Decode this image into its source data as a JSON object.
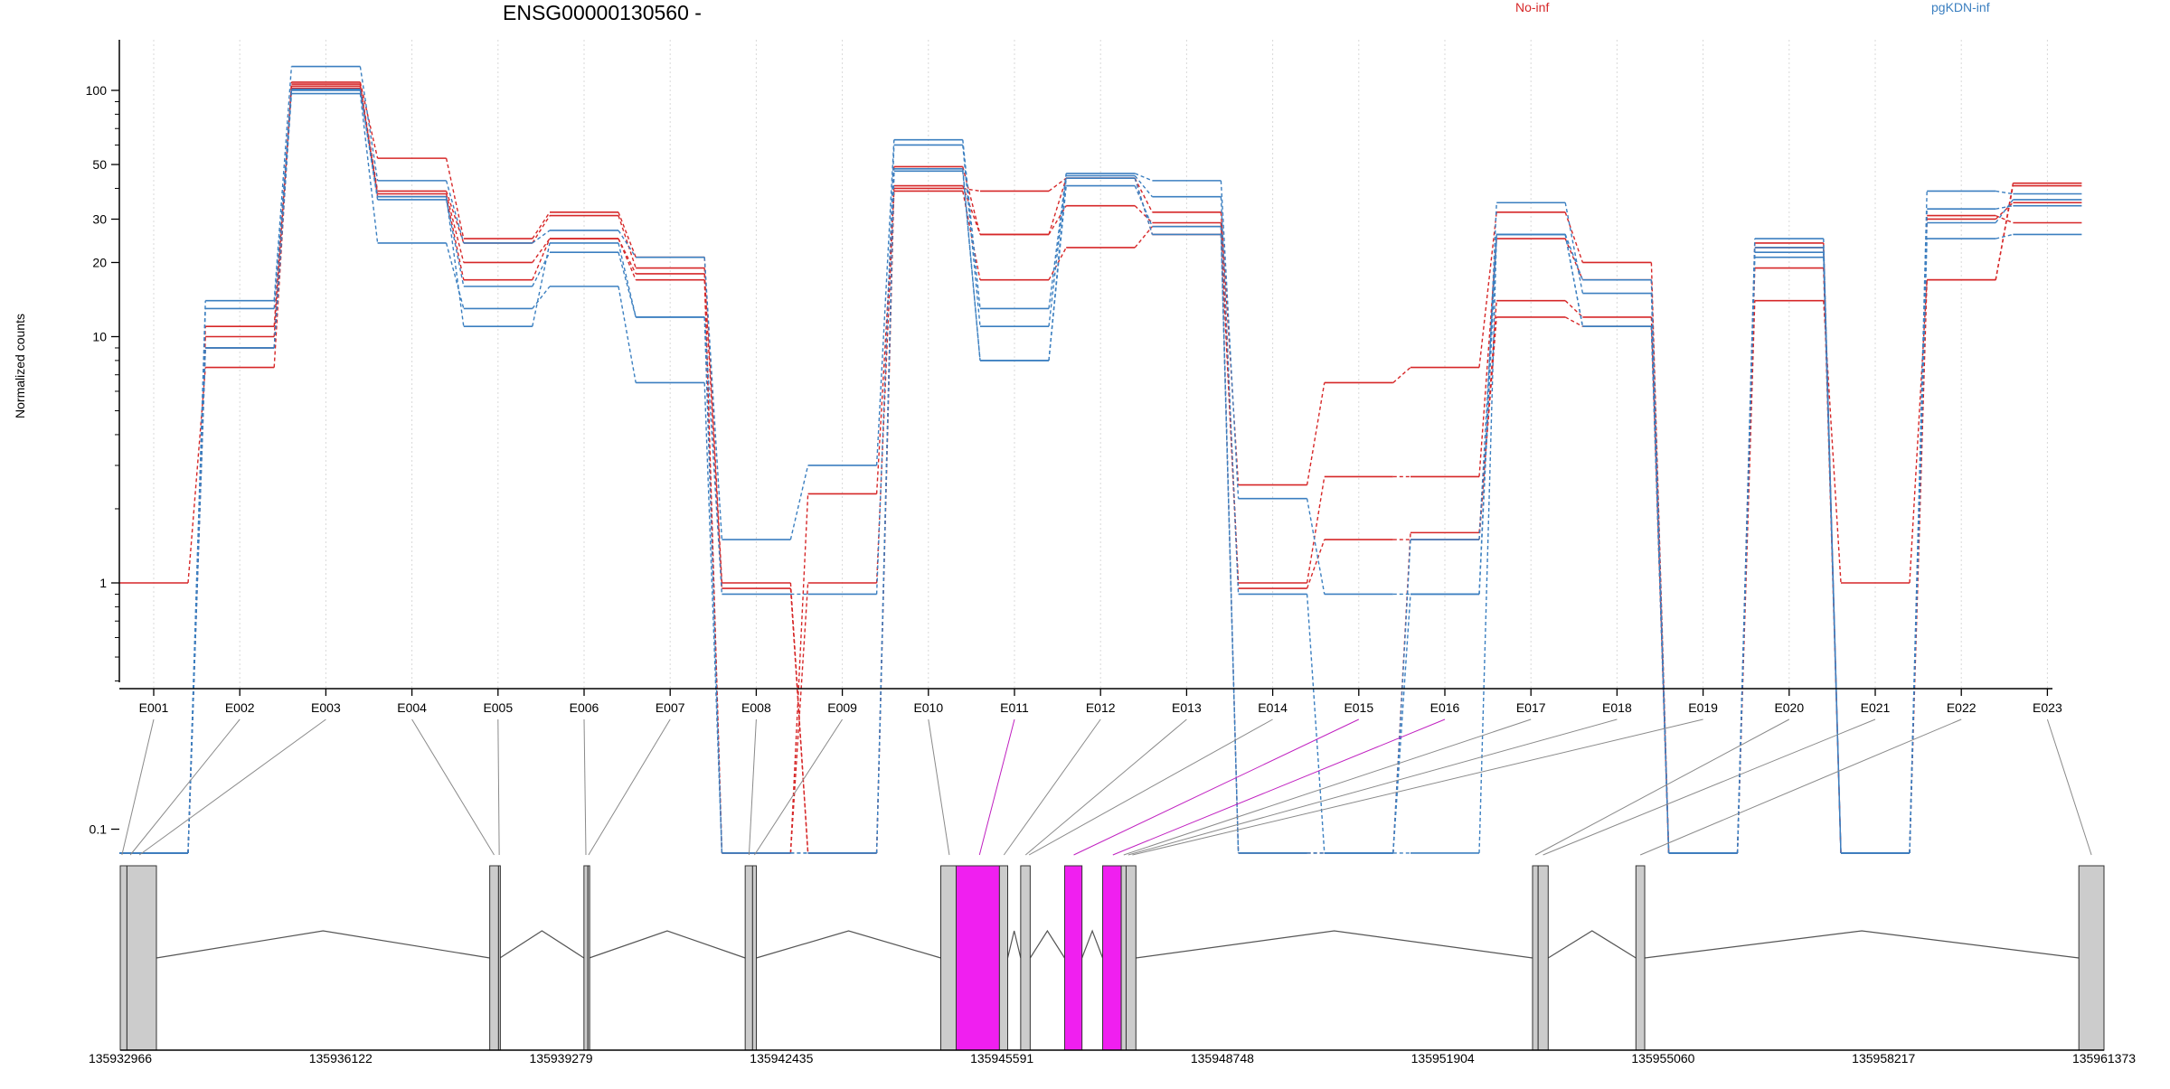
{
  "chart_data": {
    "type": "line",
    "title": "ENSG00000130560 -",
    "xlabel": "",
    "ylabel": "Normalized counts",
    "y_scale": "log",
    "y_ticks": [
      0.1,
      1,
      10,
      20,
      30,
      50,
      100
    ],
    "y_tick_labels": [
      "0.1",
      "1",
      "10",
      "20",
      "30",
      "50",
      "100"
    ],
    "y_range": [
      0.07,
      150
    ],
    "grid": "vertical dotted lines at each exon",
    "legend_position": "top-right",
    "categories": [
      "E001",
      "E002",
      "E003",
      "E004",
      "E005",
      "E006",
      "E007",
      "E008",
      "E009",
      "E010",
      "E011",
      "E012",
      "E013",
      "E014",
      "E015",
      "E016",
      "E017",
      "E018",
      "E019",
      "E020",
      "E021",
      "E022",
      "E023"
    ],
    "series": [
      {
        "group": "No-inf",
        "color": "#d62728",
        "values": [
          1,
          7.5,
          108,
          53,
          25,
          32,
          21,
          1.0,
          0.08,
          40,
          39,
          44,
          32,
          2.5,
          6.5,
          7.5,
          32,
          20,
          0.08,
          14,
          1,
          17,
          42
        ]
      },
      {
        "group": "No-inf",
        "color": "#d62728",
        "values": [
          0.08,
          9,
          106,
          39,
          24,
          31,
          19,
          0.08,
          1.0,
          41,
          26,
          34,
          29,
          1.0,
          2.7,
          2.7,
          25,
          17,
          0.08,
          19,
          0.08,
          17,
          41
        ]
      },
      {
        "group": "No-inf",
        "color": "#d62728",
        "values": [
          0.08,
          10,
          104,
          38,
          20,
          25,
          18,
          0.95,
          0.08,
          49,
          26,
          44,
          26,
          0.95,
          1.5,
          1.5,
          14,
          12,
          0.08,
          23,
          0.08,
          30,
          35
        ]
      },
      {
        "group": "No-inf",
        "color": "#d62728",
        "values": [
          0.08,
          11,
          102,
          37,
          17,
          25,
          17,
          0.08,
          2.3,
          39,
          17,
          23,
          28,
          0.08,
          0.08,
          1.6,
          12,
          11,
          0.08,
          24,
          0.08,
          31,
          29
        ]
      },
      {
        "group": "pgKDN-inf",
        "color": "#3b7fc0",
        "values": [
          0.08,
          14,
          125,
          43,
          24,
          27,
          21,
          1.5,
          3.0,
          63,
          13,
          46,
          43,
          2.2,
          0.9,
          0.9,
          35,
          15,
          0.08,
          25,
          0.08,
          39,
          38
        ]
      },
      {
        "group": "pgKDN-inf",
        "color": "#3b7fc0",
        "values": [
          0.08,
          13,
          100,
          36,
          16,
          22,
          12,
          0.9,
          0.9,
          60,
          11,
          45,
          37,
          0.9,
          0.08,
          0.08,
          26,
          17,
          0.08,
          23,
          0.08,
          33,
          34
        ]
      },
      {
        "group": "pgKDN-inf",
        "color": "#3b7fc0",
        "values": [
          0.08,
          9,
          97,
          24,
          13,
          16,
          6.5,
          0.08,
          0.08,
          47,
          8,
          41,
          28,
          0.08,
          0.08,
          0.9,
          26,
          11,
          0.08,
          21,
          0.08,
          25,
          26
        ]
      },
      {
        "group": "pgKDN-inf",
        "color": "#3b7fc0",
        "values": [
          0.08,
          9,
          101,
          37,
          11,
          24,
          12,
          0.08,
          0.08,
          48,
          8,
          44,
          26,
          0.08,
          0.08,
          1.5,
          26,
          11,
          0.08,
          22,
          0.08,
          29,
          36
        ]
      }
    ],
    "genomic_axis": {
      "range": [
        135932966,
        135961373
      ],
      "tick_labels": [
        "135932966",
        "135936122",
        "135939279",
        "135942435",
        "135945591",
        "135948748",
        "135951904",
        "135955060",
        "135958217",
        "135961373"
      ]
    },
    "gene_model_exons": [
      {
        "start": 135932966,
        "end": 135933062,
        "highlight": false
      },
      {
        "start": 135933062,
        "end": 135933484,
        "highlight": false
      },
      {
        "start": 135938257,
        "end": 135938383,
        "highlight": false
      },
      {
        "start": 135938383,
        "end": 135938403,
        "highlight": false
      },
      {
        "start": 135939606,
        "end": 135939662,
        "highlight": false
      },
      {
        "start": 135939662,
        "end": 135939682,
        "highlight": false
      },
      {
        "start": 135941915,
        "end": 135942021,
        "highlight": false
      },
      {
        "start": 135942021,
        "end": 135942075,
        "highlight": false
      },
      {
        "start": 135944716,
        "end": 135944936,
        "highlight": false
      },
      {
        "start": 135944936,
        "end": 135945556,
        "highlight": true
      },
      {
        "start": 135945556,
        "end": 135945674,
        "highlight": false
      },
      {
        "start": 135945860,
        "end": 135945996,
        "highlight": false
      },
      {
        "start": 135946489,
        "end": 135946738,
        "highlight": true
      },
      {
        "start": 135947034,
        "end": 135947300,
        "highlight": true
      },
      {
        "start": 135947300,
        "end": 135947370,
        "highlight": false
      },
      {
        "start": 135947370,
        "end": 135947510,
        "highlight": false
      },
      {
        "start": 135953190,
        "end": 135953270,
        "highlight": false
      },
      {
        "start": 135953270,
        "end": 135953414,
        "highlight": false
      },
      {
        "start": 135954670,
        "end": 135954796,
        "highlight": false
      },
      {
        "start": 135961013,
        "end": 135961373,
        "highlight": false
      }
    ],
    "connectors": [
      {
        "exon": "E001",
        "genomic": 135932990,
        "highlight": false
      },
      {
        "exon": "E002",
        "genomic": 135933110,
        "highlight": false
      },
      {
        "exon": "E003",
        "genomic": 135933240,
        "highlight": false
      },
      {
        "exon": "E004",
        "genomic": 135938320,
        "highlight": false
      },
      {
        "exon": "E005",
        "genomic": 135938393,
        "highlight": false
      },
      {
        "exon": "E006",
        "genomic": 135939634,
        "highlight": false
      },
      {
        "exon": "E007",
        "genomic": 135939672,
        "highlight": false
      },
      {
        "exon": "E008",
        "genomic": 135941970,
        "highlight": false
      },
      {
        "exon": "E009",
        "genomic": 135942048,
        "highlight": false
      },
      {
        "exon": "E010",
        "genomic": 135944838,
        "highlight": false
      },
      {
        "exon": "E011",
        "genomic": 135945270,
        "highlight": true
      },
      {
        "exon": "E012",
        "genomic": 135945620,
        "highlight": false
      },
      {
        "exon": "E013",
        "genomic": 135945930,
        "highlight": false
      },
      {
        "exon": "E014",
        "genomic": 135945980,
        "highlight": false
      },
      {
        "exon": "E015",
        "genomic": 135946620,
        "highlight": true
      },
      {
        "exon": "E016",
        "genomic": 135947180,
        "highlight": true
      },
      {
        "exon": "E017",
        "genomic": 135947335,
        "highlight": false
      },
      {
        "exon": "E018",
        "genomic": 135947400,
        "highlight": false
      },
      {
        "exon": "E019",
        "genomic": 135947460,
        "highlight": false
      },
      {
        "exon": "E020",
        "genomic": 135953230,
        "highlight": false
      },
      {
        "exon": "E021",
        "genomic": 135953340,
        "highlight": false
      },
      {
        "exon": "E022",
        "genomic": 135954733,
        "highlight": false
      },
      {
        "exon": "E023",
        "genomic": 135961193,
        "highlight": false
      }
    ]
  },
  "legend": [
    {
      "label": "No-inf",
      "color": "#d62728"
    },
    {
      "label": "pgKDN-inf",
      "color": "#3b7fc0"
    }
  ]
}
